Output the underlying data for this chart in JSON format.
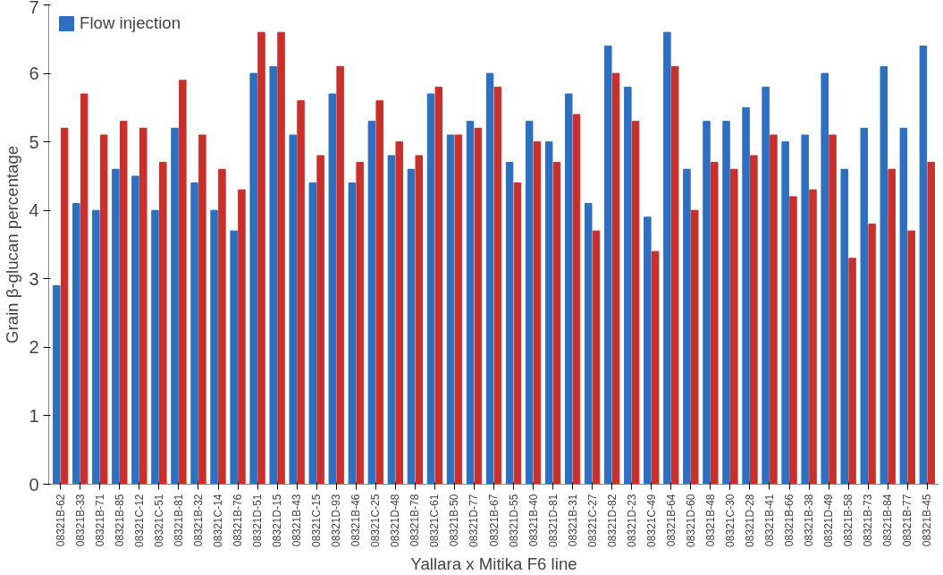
{
  "chart_data": {
    "type": "bar",
    "xlabel": "Yallara x Mitika F6 line",
    "ylabel": "Grain β-glucan percentage",
    "categories": [
      "08321B-62",
      "08321B-33",
      "08321B-71",
      "08321B-85",
      "08321C-12",
      "08321C-51",
      "08321B-81",
      "08321B-32",
      "08321C-14",
      "08321B-76",
      "08321D-51",
      "08321D-15",
      "08321B-43",
      "08321C-15",
      "08321D-93",
      "08321B-46",
      "08321C-25",
      "08321D-48",
      "08321B-78",
      "08321C-61",
      "08321B-50",
      "08321D-77",
      "08321B-67",
      "08321D-55",
      "08321B-40",
      "08321D-81",
      "08321B-31",
      "08321C-27",
      "08321D-82",
      "08321D-23",
      "08321C-49",
      "08321B-64",
      "08321D-60",
      "08321B-48",
      "08321C-30",
      "08321D-28",
      "08321B-41",
      "08321B-66",
      "08321B-38",
      "08321D-49",
      "08321B-58",
      "08321B-73",
      "08321B-84",
      "08321B-77",
      "08321B-45"
    ],
    "series": [
      {
        "name": "Flow injection",
        "color": "#2e6fc0",
        "values": [
          2.9,
          4.1,
          4.0,
          4.6,
          4.5,
          4.0,
          5.2,
          4.4,
          4.0,
          3.7,
          6.0,
          6.1,
          5.1,
          4.4,
          5.7,
          4.4,
          5.3,
          4.8,
          4.6,
          5.7,
          5.1,
          5.3,
          6.0,
          4.7,
          5.3,
          5.0,
          5.7,
          4.1,
          6.4,
          5.8,
          3.9,
          6.6,
          4.6,
          5.3,
          5.3,
          5.5,
          5.8,
          5.0,
          5.1,
          6.0,
          4.6,
          5.2,
          6.1,
          5.2,
          6.4
        ]
      },
      {
        "color": "#c8302c",
        "values": [
          5.2,
          5.7,
          5.1,
          5.3,
          5.2,
          4.7,
          5.9,
          5.1,
          4.6,
          4.3,
          6.6,
          6.6,
          5.6,
          4.8,
          6.1,
          4.7,
          5.6,
          5.0,
          4.8,
          5.8,
          5.1,
          5.2,
          5.8,
          4.4,
          5.0,
          4.7,
          5.4,
          3.7,
          6.0,
          5.3,
          3.4,
          6.1,
          4.0,
          4.7,
          4.6,
          4.8,
          5.1,
          4.2,
          4.3,
          5.1,
          3.3,
          3.8,
          4.6,
          3.7,
          4.7
        ]
      }
    ],
    "ylim": [
      0,
      7
    ],
    "yticks": [
      0,
      1,
      2,
      3,
      4,
      5,
      6,
      7
    ],
    "grid": false,
    "legend": "top left"
  }
}
